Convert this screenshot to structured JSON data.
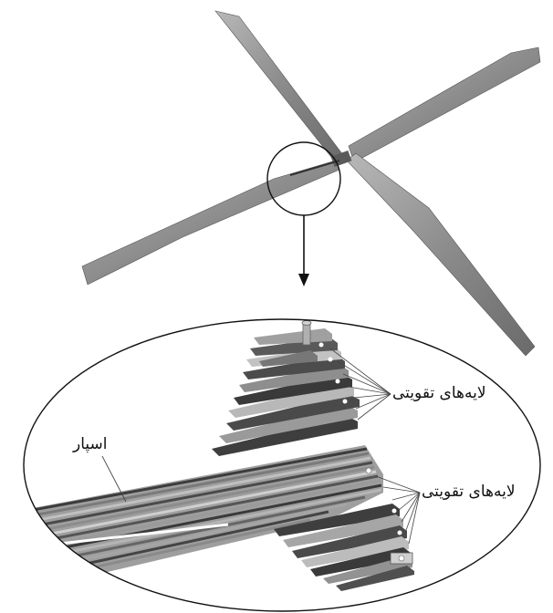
{
  "labels": {
    "reinforcement_upper": "لایه‌های تقویتی",
    "reinforcement_lower": "لایه‌های تقویتی",
    "spar": "اسپار"
  },
  "colors": {
    "blade_light": "#a9a9a9",
    "blade_dark": "#6e6e6e",
    "layer_dark": "#4a4a4a",
    "layer_mid": "#8a8a8a",
    "layer_light": "#c4c4c4",
    "line": "#111111"
  }
}
